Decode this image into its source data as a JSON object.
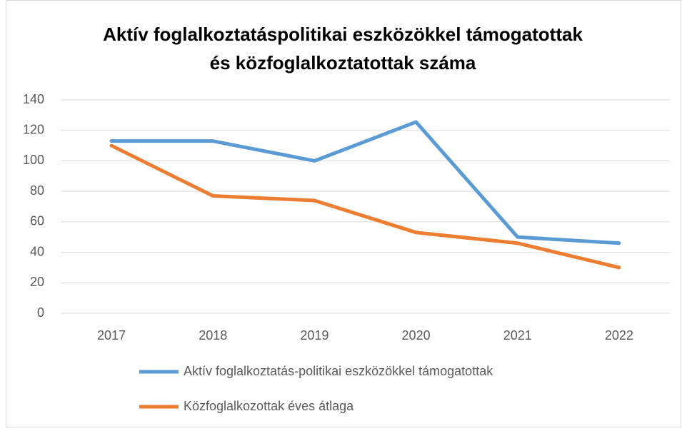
{
  "chart_data": {
    "type": "line",
    "title": [
      "Aktív foglalkoztatáspolitikai eszközökkel támogatottak",
      "és közfoglalkoztatottak száma"
    ],
    "categories": [
      "2017",
      "2018",
      "2019",
      "2020",
      "2021",
      "2022"
    ],
    "series": [
      {
        "name": "Aktív foglalkoztatás-politikai eszközökkel támogatottak",
        "color": "#5b9bd5",
        "values": [
          113,
          113,
          100,
          125.5,
          50,
          46
        ]
      },
      {
        "name": "Közfoglalkozottak éves átlaga",
        "color": "#ed7d31",
        "values": [
          110,
          77,
          74,
          53,
          46,
          30
        ]
      }
    ],
    "ylim": [
      0,
      140
    ],
    "yticks": [
      0,
      20,
      40,
      60,
      80,
      100,
      120,
      140
    ],
    "grid": true,
    "legend": "bottom"
  }
}
